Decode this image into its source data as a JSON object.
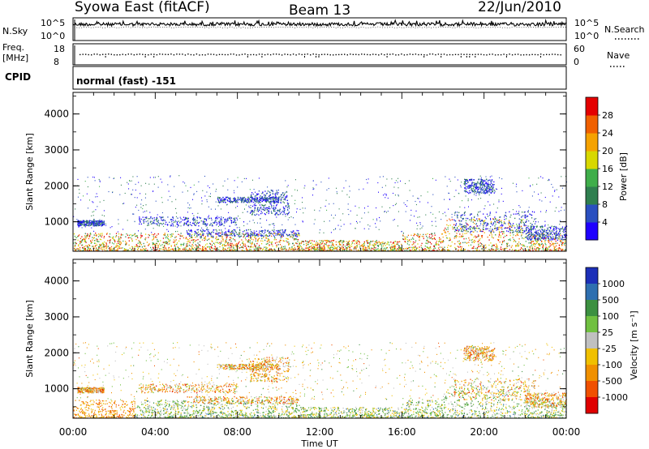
{
  "header": {
    "left": "Syowa East (fitACF)",
    "center": "Beam 13",
    "right": "22/Jun/2010"
  },
  "nsky": {
    "label": "N.Sky",
    "ticks": [
      "10^5",
      "10^0"
    ],
    "right_label": "N.Search",
    "right_ticks": [
      "10^5",
      "10^0"
    ]
  },
  "freq": {
    "label_line1": "Freq.",
    "label_line2": "[MHz]",
    "ticks": [
      "18",
      "8"
    ],
    "right_label": "Nave",
    "right_ticks": [
      "60",
      "0"
    ]
  },
  "cpid": {
    "label": "CPID",
    "value": "normal (fast) -151"
  },
  "chart_data": [
    {
      "type": "heatmap",
      "panel": "power",
      "ylabel": "Slant Range [km]",
      "xlabel": "Time UT",
      "x_ticks": [
        "00:00",
        "04:00",
        "08:00",
        "12:00",
        "16:00",
        "20:00",
        "00:00"
      ],
      "y_ticks": [
        1000,
        2000,
        3000,
        4000
      ],
      "ylim": [
        180,
        4600
      ],
      "xlim_hours": [
        0,
        24
      ],
      "colorbar": {
        "label": "Power [dB]",
        "tick_labels": [
          "4",
          "8",
          "12",
          "16",
          "20",
          "24",
          "28"
        ],
        "colors": [
          "#1f00ff",
          "#2a4fc0",
          "#2f7f4f",
          "#3fae4a",
          "#d8d800",
          "#f5a200",
          "#f06000",
          "#e40000"
        ]
      }
    },
    {
      "type": "heatmap",
      "panel": "velocity",
      "ylabel": "Slant Range [km]",
      "xlabel": "Time UT",
      "x_ticks": [
        "00:00",
        "04:00",
        "08:00",
        "12:00",
        "16:00",
        "20:00",
        "00:00"
      ],
      "y_ticks": [
        1000,
        2000,
        3000,
        4000
      ],
      "ylim": [
        180,
        4600
      ],
      "xlim_hours": [
        0,
        24
      ],
      "colorbar": {
        "label": "Velocity [m s⁻¹]",
        "tick_labels": [
          "1000",
          "500",
          "100",
          "25",
          "-25",
          "-100",
          "-500",
          "-1000"
        ],
        "colors": [
          "#1c2fb8",
          "#2e6fb0",
          "#3c9040",
          "#70c040",
          "#c0c0c0",
          "#f0c000",
          "#f09000",
          "#f05000",
          "#e00000"
        ]
      }
    }
  ]
}
